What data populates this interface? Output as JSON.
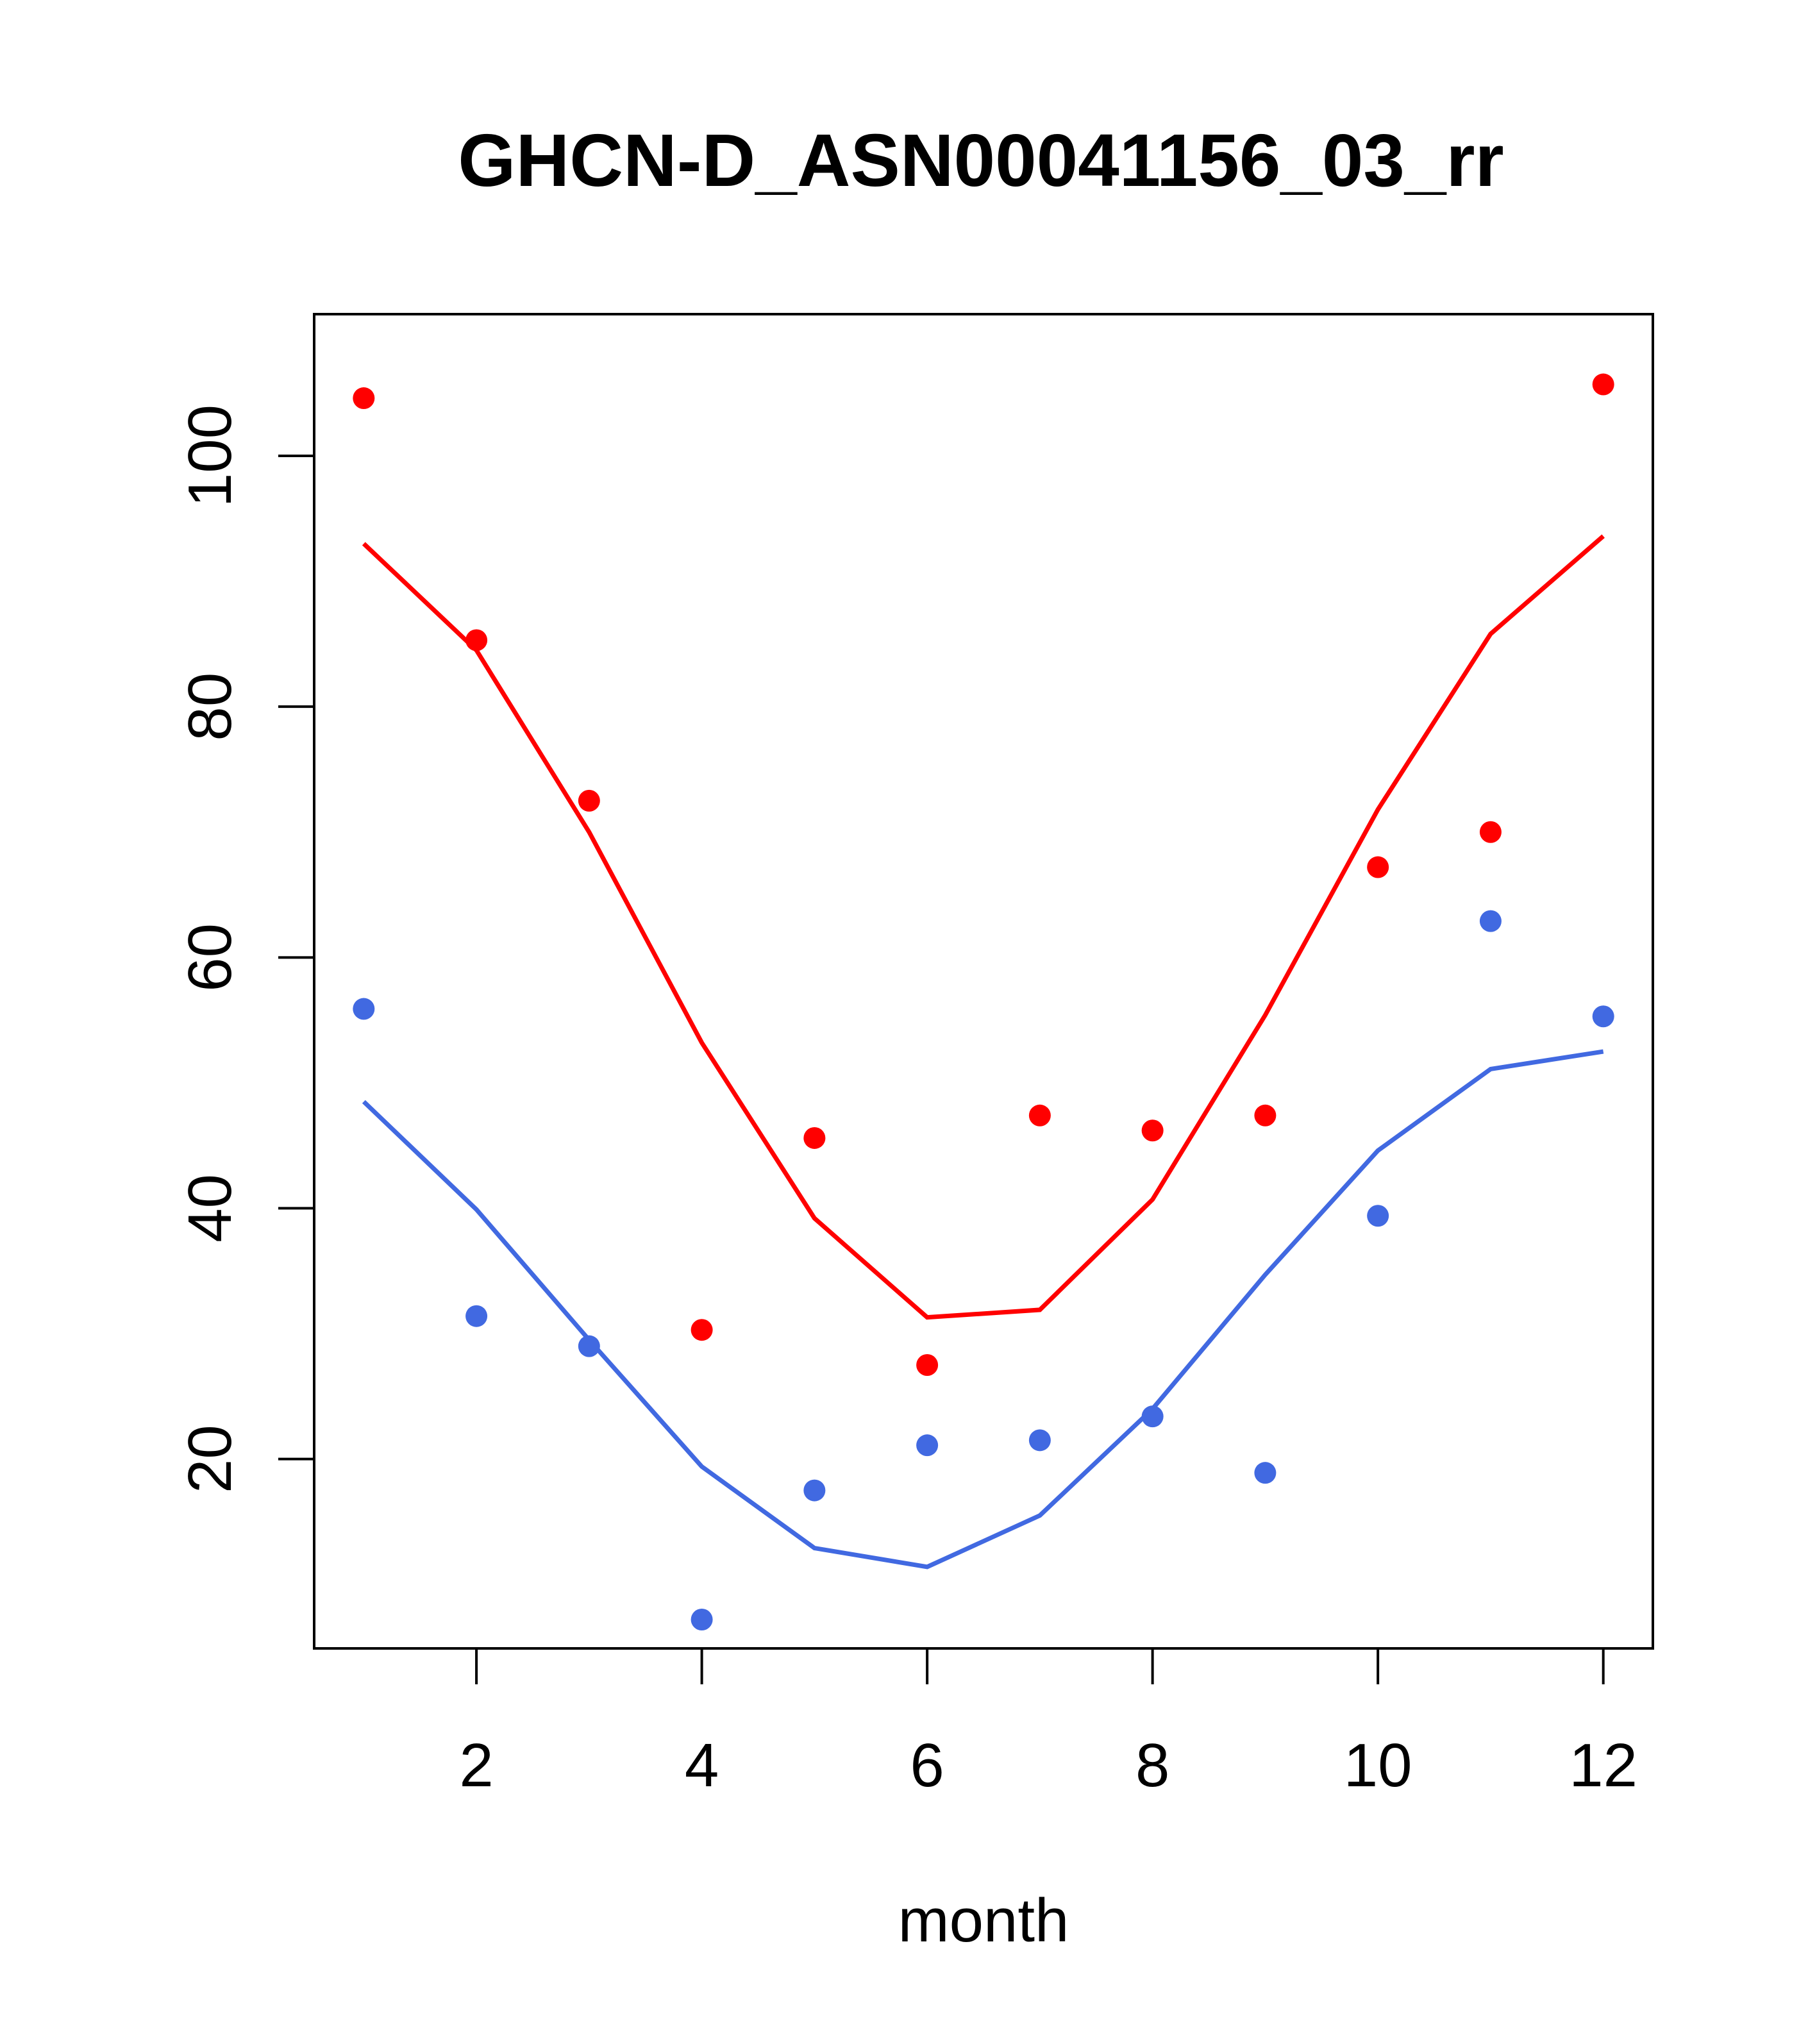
{
  "chart_data": {
    "type": "scatter",
    "title": "GHCN-D_ASN00041156_03_rr",
    "xlabel": "month",
    "ylabel": "",
    "xlim": [
      0.56,
      12.44
    ],
    "ylim": [
      4.9,
      111.3
    ],
    "xticks": [
      2,
      4,
      6,
      8,
      10,
      12
    ],
    "yticks": [
      20,
      40,
      60,
      80,
      100
    ],
    "x": [
      1,
      2,
      3,
      4,
      5,
      6,
      7,
      8,
      9,
      10,
      11,
      12
    ],
    "series": [
      {
        "color": "#ff0000",
        "points": [
          104.6,
          85.3,
          72.5,
          30.3,
          45.6,
          27.5,
          47.4,
          46.2,
          47.4,
          67.2,
          70.0,
          105.7
        ],
        "line": [
          93.0,
          84.5,
          70.0,
          53.2,
          39.2,
          31.3,
          31.9,
          40.7,
          55.4,
          71.8,
          85.8,
          93.6
        ]
      },
      {
        "color": "#4169e1",
        "points": [
          55.9,
          31.4,
          29.0,
          7.2,
          17.5,
          21.1,
          21.5,
          23.4,
          18.9,
          39.4,
          62.9,
          55.3
        ],
        "line": [
          48.5,
          39.9,
          29.5,
          19.4,
          12.9,
          11.4,
          15.5,
          24.0,
          34.7,
          44.6,
          51.1,
          52.5
        ]
      }
    ]
  }
}
